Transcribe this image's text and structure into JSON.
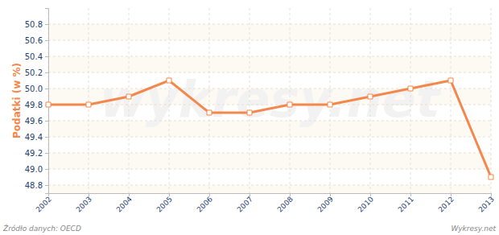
{
  "chart_data": {
    "type": "line",
    "y_label": "Podatki (w %)",
    "annotations": [
      "Źródło danych: OECD",
      "Wykresy.net",
      "wykresy.net"
    ],
    "categories": [
      "2002",
      "2003",
      "2004",
      "2005",
      "2006",
      "2007",
      "2008",
      "2009",
      "2010",
      "2011",
      "2012",
      "2013"
    ],
    "values": [
      49.8,
      49.8,
      49.9,
      50.1,
      49.7,
      49.7,
      49.8,
      49.8,
      49.9,
      50.0,
      50.1,
      48.9
    ],
    "color": "#f4874b",
    "marker": "square",
    "ylim": [
      48.7,
      51.0
    ],
    "yticks": [
      48.8,
      {
        "value": 49,
        "label": "49.0"
      },
      49.2,
      49.4,
      49.6,
      49.8,
      {
        "value": 50,
        "label": "50.0"
      },
      50.2,
      50.4,
      50.6,
      50.8
    ],
    "grid": true
  }
}
